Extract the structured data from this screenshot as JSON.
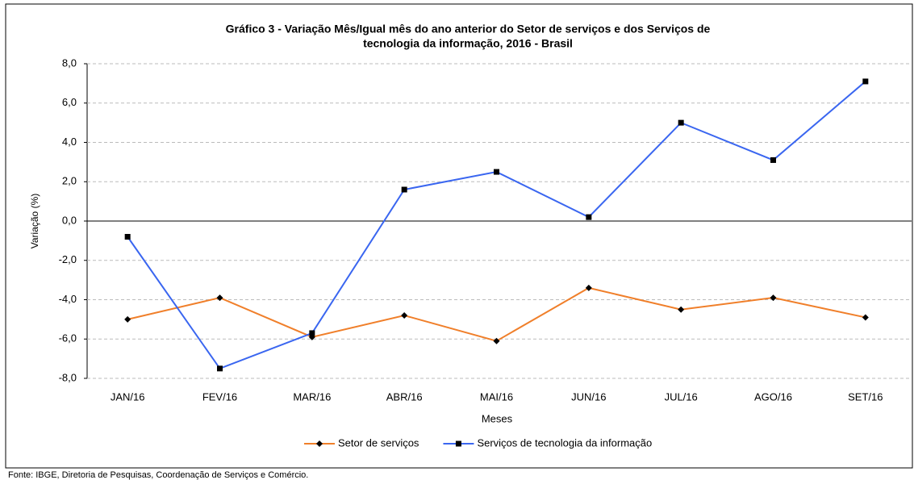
{
  "chart_data": {
    "type": "line",
    "title": [
      "Gráfico 3 - Variação Mês/Igual mês do ano anterior do Setor de serviços e dos Serviços de",
      "tecnologia da informação, 2016 - Brasil"
    ],
    "x_label": "Meses",
    "y_label": "Variação (%)",
    "source": "Fonte: IBGE, Diretoria de Pesquisas, Coordenação de Serviços e Comércio.",
    "categories": [
      "JAN/16",
      "FEV/16",
      "MAR/16",
      "ABR/16",
      "MAI/16",
      "JUN/16",
      "JUL/16",
      "AGO/16",
      "SET/16"
    ],
    "series": [
      {
        "name": "Setor de serviços",
        "color": "#f07f2a",
        "marker": "diamond",
        "values": [
          -5.0,
          -3.9,
          -5.9,
          -4.8,
          -6.1,
          -3.4,
          -4.5,
          -3.9,
          -4.9
        ]
      },
      {
        "name": "Serviços de tecnologia da informação",
        "color": "#3a66f0",
        "marker": "square",
        "values": [
          -0.8,
          -7.5,
          -5.7,
          1.6,
          2.5,
          0.2,
          5.0,
          3.1,
          7.1
        ]
      }
    ],
    "marker_color": "#000000",
    "ylim": [
      -8,
      8
    ],
    "yticks": [
      {
        "value": -8,
        "label": "-8,0"
      },
      {
        "value": -6,
        "label": "-6,0"
      },
      {
        "value": -4,
        "label": "-4,0"
      },
      {
        "value": -2,
        "label": "-2,0"
      },
      {
        "value": 0,
        "label": "0,0"
      },
      {
        "value": 2,
        "label": "2,0"
      },
      {
        "value": 4,
        "label": "4,0"
      },
      {
        "value": 6,
        "label": "6,0"
      },
      {
        "value": 8,
        "label": "8,0"
      }
    ],
    "grid": true,
    "legend": "bottom"
  }
}
